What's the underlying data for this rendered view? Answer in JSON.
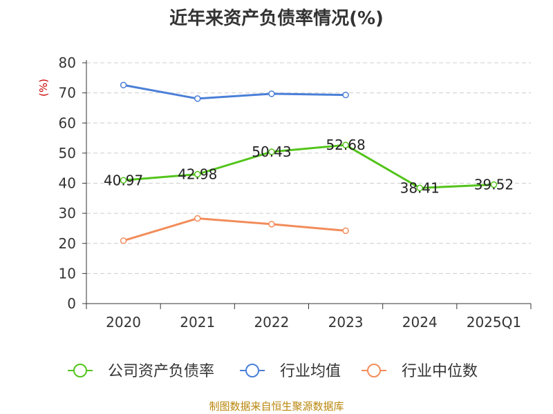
{
  "chart_data": {
    "type": "line",
    "title": "近年来资产负债率情况(%)",
    "ylabel": "(%)",
    "xlabel": "",
    "categories": [
      "2020",
      "2021",
      "2022",
      "2023",
      "2024",
      "2025Q1"
    ],
    "ylim": [
      0,
      80
    ],
    "yticks": [
      0,
      10,
      20,
      30,
      40,
      50,
      60,
      70,
      80
    ],
    "grid": true,
    "legend_position": "bottom",
    "series": [
      {
        "name": "公司资产负债率",
        "color": "#52c41a",
        "values": [
          40.97,
          42.98,
          50.43,
          52.68,
          38.41,
          39.52
        ],
        "labels": [
          "40.97",
          "42.98",
          "50.43",
          "52.68",
          "38.41",
          "39.52"
        ]
      },
      {
        "name": "行业均值",
        "color": "#4a7fd8",
        "values": [
          72.6,
          68.1,
          69.7,
          69.3,
          null,
          null
        ]
      },
      {
        "name": "行业中位数",
        "color": "#f28c5a",
        "values": [
          20.9,
          28.3,
          26.4,
          24.2,
          null,
          null
        ]
      }
    ]
  },
  "footer": "制图数据来自恒生聚源数据库"
}
